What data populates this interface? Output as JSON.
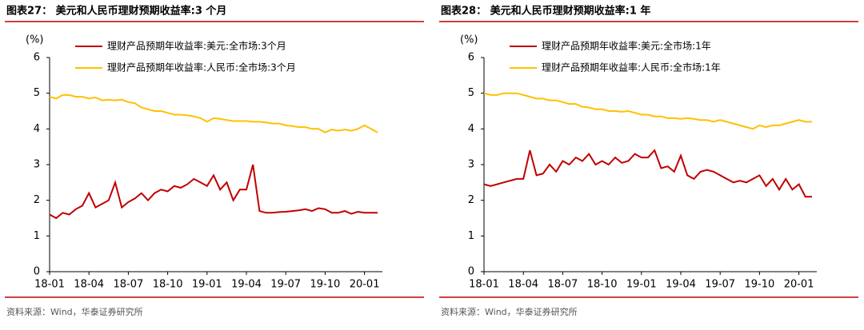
{
  "charts": [
    {
      "chart_data": {
        "type": "line",
        "title": "图表27：  美元和人民币理财预期收益率:3 个月",
        "y_label": "(%)",
        "categories": [
          "18-01",
          null,
          null,
          null,
          null,
          null,
          "18-04",
          null,
          null,
          null,
          null,
          null,
          "18-07",
          null,
          null,
          null,
          null,
          null,
          "18-10",
          null,
          null,
          null,
          null,
          null,
          "19-01",
          null,
          null,
          null,
          null,
          null,
          "19-04",
          null,
          null,
          null,
          null,
          null,
          "19-07",
          null,
          null,
          null,
          null,
          null,
          "19-10",
          null,
          null,
          null,
          null,
          null,
          "20-01",
          null,
          null
        ],
        "series": [
          {
            "name": "理财产品预期年收益率:美元:全市场:3个月",
            "color": "#c00000",
            "values": [
              1.6,
              1.5,
              1.65,
              1.6,
              1.75,
              1.85,
              2.2,
              1.8,
              1.9,
              2.0,
              2.5,
              1.8,
              1.95,
              2.05,
              2.2,
              2.0,
              2.2,
              2.3,
              2.25,
              2.4,
              2.35,
              2.45,
              2.6,
              2.5,
              2.4,
              2.7,
              2.3,
              2.5,
              2.0,
              2.3,
              2.3,
              3.0,
              1.7,
              1.65,
              1.65,
              1.67,
              1.68,
              1.7,
              1.72,
              1.75,
              1.7,
              1.78,
              1.75,
              1.65,
              1.65,
              1.7,
              1.62,
              1.68,
              1.65,
              1.65,
              1.65
            ]
          },
          {
            "name": "理财产品预期年收益率:人民币:全市场:3个月",
            "color": "#ffc000",
            "values": [
              4.9,
              4.85,
              4.95,
              4.95,
              4.9,
              4.9,
              4.85,
              4.88,
              4.8,
              4.82,
              4.8,
              4.82,
              4.75,
              4.72,
              4.6,
              4.55,
              4.5,
              4.5,
              4.45,
              4.4,
              4.4,
              4.38,
              4.35,
              4.3,
              4.2,
              4.3,
              4.28,
              4.25,
              4.22,
              4.22,
              4.22,
              4.2,
              4.2,
              4.18,
              4.15,
              4.15,
              4.1,
              4.08,
              4.05,
              4.05,
              4.0,
              4.0,
              3.9,
              3.98,
              3.95,
              3.98,
              3.95,
              4.0,
              4.1,
              4.0,
              3.9
            ]
          }
        ],
        "ylim": [
          0,
          6
        ],
        "yticks": [
          0,
          1,
          2,
          3,
          4,
          5,
          6
        ]
      },
      "source": "资料来源：Wind，华泰证券研究所"
    },
    {
      "chart_data": {
        "type": "line",
        "title": "图表28：  美元和人民币理财预期收益率:1 年",
        "y_label": "(%)",
        "categories": [
          "18-01",
          null,
          null,
          null,
          null,
          null,
          "18-04",
          null,
          null,
          null,
          null,
          null,
          "18-07",
          null,
          null,
          null,
          null,
          null,
          "18-10",
          null,
          null,
          null,
          null,
          null,
          "19-01",
          null,
          null,
          null,
          null,
          null,
          "19-04",
          null,
          null,
          null,
          null,
          null,
          "19-07",
          null,
          null,
          null,
          null,
          null,
          "19-10",
          null,
          null,
          null,
          null,
          null,
          "20-01",
          null,
          null
        ],
        "series": [
          {
            "name": "理财产品预期年收益率:美元:全市场:1年",
            "color": "#c00000",
            "values": [
              2.45,
              2.4,
              2.45,
              2.5,
              2.55,
              2.6,
              2.6,
              3.4,
              2.7,
              2.75,
              3.0,
              2.8,
              3.1,
              3.0,
              3.2,
              3.1,
              3.3,
              3.0,
              3.1,
              3.0,
              3.2,
              3.05,
              3.1,
              3.3,
              3.2,
              3.2,
              3.4,
              2.9,
              2.95,
              2.8,
              3.25,
              2.7,
              2.6,
              2.8,
              2.85,
              2.8,
              2.7,
              2.6,
              2.5,
              2.55,
              2.5,
              2.6,
              2.7,
              2.4,
              2.6,
              2.3,
              2.6,
              2.3,
              2.45,
              2.1,
              2.1
            ]
          },
          {
            "name": "理财产品预期年收益率:人民币:全市场:1年",
            "color": "#ffc000",
            "values": [
              5.0,
              4.95,
              4.95,
              5.0,
              5.0,
              5.0,
              4.95,
              4.9,
              4.85,
              4.85,
              4.8,
              4.8,
              4.75,
              4.7,
              4.7,
              4.62,
              4.6,
              4.55,
              4.55,
              4.5,
              4.5,
              4.48,
              4.5,
              4.45,
              4.4,
              4.4,
              4.35,
              4.35,
              4.3,
              4.3,
              4.28,
              4.3,
              4.28,
              4.25,
              4.25,
              4.2,
              4.25,
              4.2,
              4.15,
              4.1,
              4.05,
              4.0,
              4.1,
              4.05,
              4.1,
              4.1,
              4.15,
              4.2,
              4.25,
              4.2,
              4.2
            ]
          }
        ],
        "ylim": [
          0,
          6
        ],
        "yticks": [
          0,
          1,
          2,
          3,
          4,
          5,
          6
        ]
      },
      "source": "资料来源：Wind，华泰证券研究所"
    }
  ]
}
